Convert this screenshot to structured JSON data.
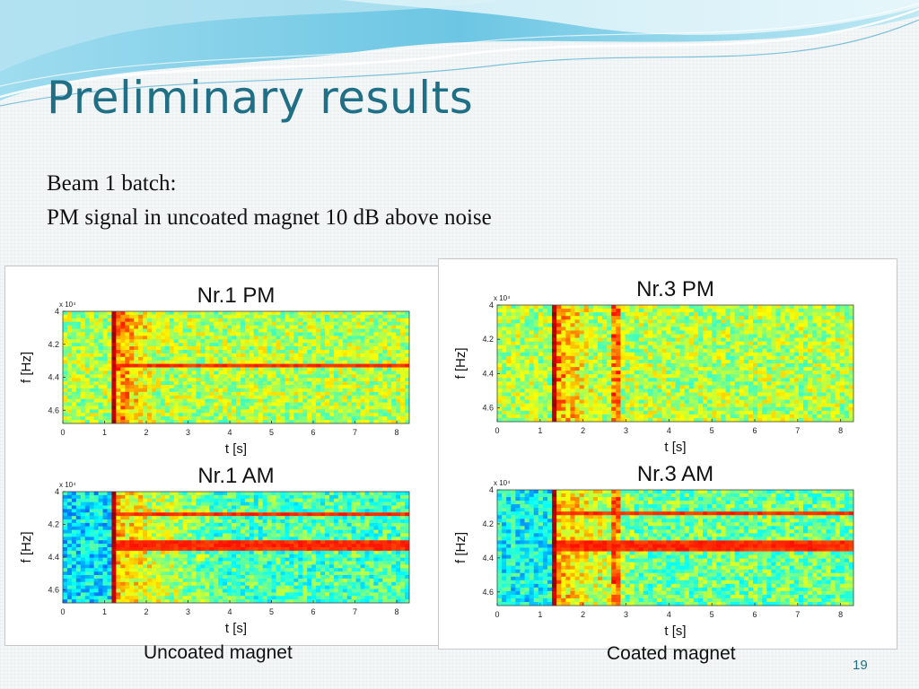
{
  "slide": {
    "title": "Preliminary results",
    "line1": "Beam 1 batch:",
    "line2": "PM signal in uncoated magnet 10 dB above noise",
    "caption_left": "Uncoated magnet",
    "caption_right": "Coated magnet",
    "page_number": "19"
  },
  "colors": {
    "title": "#1f6f86",
    "wave_light": "#bfe6f2",
    "wave_mid": "#7fcde6",
    "wave_dark": "#3aa7cf"
  },
  "chart_data": [
    {
      "type": "heatmap",
      "title": "Nr.1 PM",
      "xlabel": "t [s]",
      "ylabel": "f [Hz]",
      "y_exponent": "x 10⁴",
      "xlim": [
        0,
        8.3
      ],
      "ylim": [
        4.0,
        4.68
      ],
      "x_ticks": [
        "0",
        "1",
        "2",
        "3",
        "4",
        "5",
        "6",
        "7",
        "8"
      ],
      "y_ticks": [
        "4",
        "4.2",
        "4.4",
        "4.6"
      ],
      "onset_s": 1.15,
      "secondary_event_s": null,
      "lines_y": [
        4.33
      ],
      "noise_level": 0.55,
      "decay_end_s": 2.2
    },
    {
      "type": "heatmap",
      "title": "Nr.1 AM",
      "xlabel": "t [s]",
      "ylabel": "f [Hz]",
      "y_exponent": "x 10⁴",
      "xlim": [
        0,
        8.3
      ],
      "ylim": [
        4.0,
        4.68
      ],
      "x_ticks": [
        "0",
        "1",
        "2",
        "3",
        "4",
        "5",
        "6",
        "7",
        "8"
      ],
      "y_ticks": [
        "4",
        "4.2",
        "4.4",
        "4.6"
      ],
      "onset_s": 1.15,
      "secondary_event_s": null,
      "lines_y": [
        4.13,
        4.32,
        4.34
      ],
      "noise_level": 0.45,
      "decay_end_s": 3.5
    },
    {
      "type": "heatmap",
      "title": "Nr.3 PM",
      "xlabel": "t [s]",
      "ylabel": "f [Hz]",
      "y_exponent": "x 10⁴",
      "xlim": [
        0,
        8.3
      ],
      "ylim": [
        4.0,
        4.68
      ],
      "x_ticks": [
        "0",
        "1",
        "2",
        "3",
        "4",
        "5",
        "6",
        "7",
        "8"
      ],
      "y_ticks": [
        "4",
        "4.2",
        "4.4",
        "4.6"
      ],
      "onset_s": 1.25,
      "secondary_event_s": 2.75,
      "lines_y": [],
      "noise_level": 0.55,
      "decay_end_s": 2.2
    },
    {
      "type": "heatmap",
      "title": "Nr.3 AM",
      "xlabel": "t [s]",
      "ylabel": "f [Hz]",
      "y_exponent": "x 10⁴",
      "xlim": [
        0,
        8.3
      ],
      "ylim": [
        4.0,
        4.68
      ],
      "x_ticks": [
        "0",
        "1",
        "2",
        "3",
        "4",
        "5",
        "6",
        "7",
        "8"
      ],
      "y_ticks": [
        "4",
        "4.2",
        "4.4",
        "4.6"
      ],
      "onset_s": 1.25,
      "secondary_event_s": 2.75,
      "lines_y": [
        4.13,
        4.32,
        4.34
      ],
      "noise_level": 0.48,
      "decay_end_s": 3.2
    }
  ]
}
